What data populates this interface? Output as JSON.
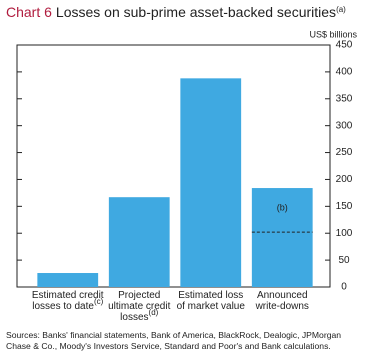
{
  "chart_data": {
    "type": "bar",
    "chart_number": "Chart 6",
    "title": "Losses on sub-prime asset-backed securities",
    "title_note": "(a)",
    "unit_label": "US$ billions",
    "categories": [
      "Estimated credit losses to date",
      "Projected ultimate credit losses",
      "Estimated loss of market value",
      "Announced write-downs"
    ],
    "category_notes": [
      "(c)",
      "(d)",
      null,
      null
    ],
    "values": [
      26,
      167,
      388,
      184
    ],
    "color": "#3fa9e1",
    "ylim": [
      0,
      450
    ],
    "yticks": [
      0,
      50,
      100,
      150,
      200,
      250,
      300,
      350,
      400,
      450
    ],
    "y_axis_side": "right",
    "grid": false,
    "annotation": {
      "text": "(b)",
      "category_index": 3,
      "line_value": 102
    },
    "source": "Sources:  Banks' financial statements, Bank of America, BlackRock, Dealogic, JPMorgan Chase & Co., Moody's Investors Service, Standard and Poor's and Bank calculations."
  }
}
